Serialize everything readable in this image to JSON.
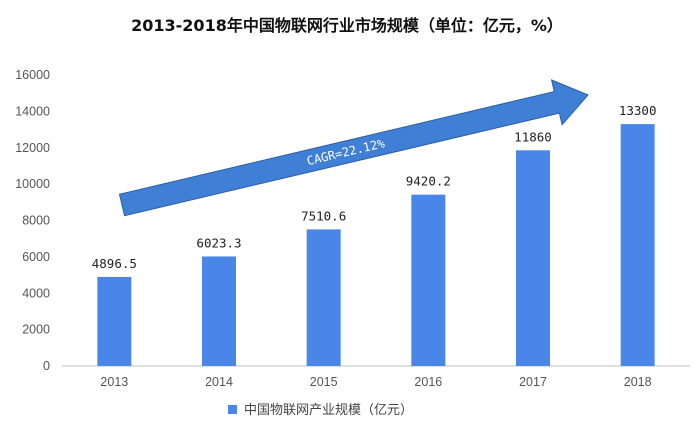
{
  "chart_data": {
    "type": "bar",
    "title": "2013-2018年中国物联网行业市场规模（单位：亿元，%）",
    "categories": [
      "2013",
      "2014",
      "2015",
      "2016",
      "2017",
      "2018"
    ],
    "series": [
      {
        "name": "中国物联网产业规模（亿元）",
        "values": [
          4896.5,
          6023.3,
          7510.6,
          9420.2,
          11860,
          13300
        ]
      }
    ],
    "data_labels": [
      "4896.5",
      "6023.3",
      "7510.6",
      "9420.2",
      "11860",
      "13300"
    ],
    "ylim": [
      0,
      16000
    ],
    "yticks": [
      0,
      2000,
      4000,
      6000,
      8000,
      10000,
      12000,
      14000,
      16000
    ],
    "grid": false,
    "legend_position": "bottom",
    "annotation": "CAGR=22.12%",
    "colors": {
      "bar": "#4a86e8",
      "arrow": "#3f7fd6",
      "arrow_border": "#2c5fa3",
      "axis": "#bfbfbf"
    }
  }
}
